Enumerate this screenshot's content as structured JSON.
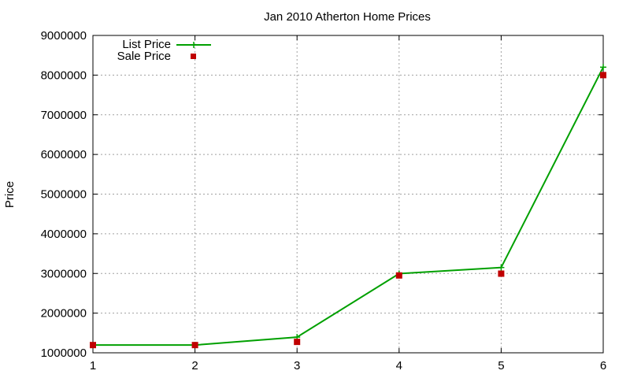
{
  "chart_data": {
    "type": "line",
    "title": "Jan 2010 Atherton Home Prices",
    "xlabel": "",
    "ylabel": "Price",
    "x": [
      1,
      2,
      3,
      4,
      5,
      6
    ],
    "xlim": [
      1,
      6
    ],
    "ylim": [
      1000000,
      9000000
    ],
    "yticks": [
      1000000,
      2000000,
      3000000,
      4000000,
      5000000,
      6000000,
      7000000,
      8000000,
      9000000
    ],
    "xticks": [
      1,
      2,
      3,
      4,
      5,
      6
    ],
    "grid": true,
    "legend_position": "top-left",
    "series": [
      {
        "name": "List Price",
        "style": "line-with-plus-markers",
        "color": "#00a000",
        "values": [
          1195000,
          1195000,
          1395000,
          2995000,
          3150000,
          8200000
        ]
      },
      {
        "name": "Sale Price",
        "style": "square-markers",
        "color": "#c00000",
        "values": [
          1195000,
          1195000,
          1275000,
          2950000,
          2995000,
          8000000
        ]
      }
    ]
  }
}
